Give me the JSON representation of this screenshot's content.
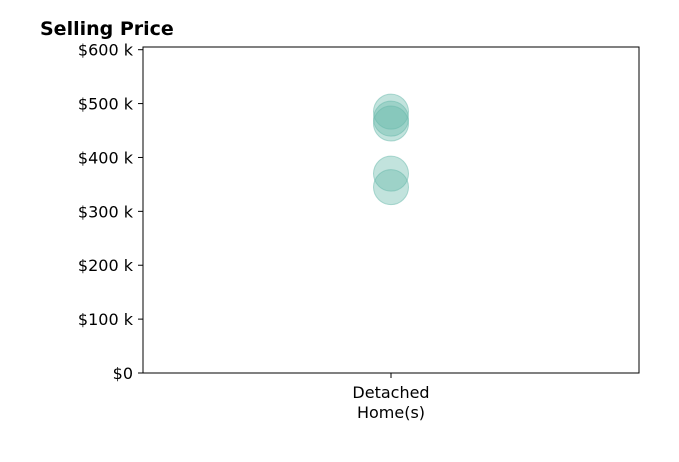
{
  "chart_data": {
    "type": "scatter",
    "title": "Selling Price",
    "xlabel": "",
    "ylabel": "",
    "categories": [
      "Detached\nHome(s)"
    ],
    "category_lines": [
      "Detached",
      "Home(s)"
    ],
    "ylim": [
      0,
      605000
    ],
    "yticks": [
      0,
      100000,
      200000,
      300000,
      400000,
      500000,
      600000
    ],
    "ytick_labels": [
      "$0",
      "$100 k",
      "$200 k",
      "$300 k",
      "$400 k",
      "$500 k",
      "$600 k"
    ],
    "grid": false,
    "legend": "none",
    "series": [
      {
        "category": "Detached Home(s)",
        "values": [
          485000,
          472000,
          463000,
          370000,
          345000
        ]
      }
    ],
    "colors": {
      "marker": "#66b8aa",
      "axis": "#000000"
    }
  }
}
